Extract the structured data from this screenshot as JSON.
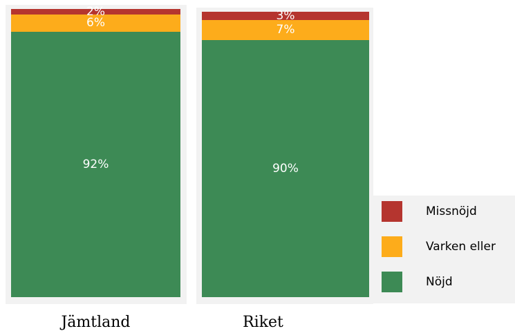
{
  "colors": {
    "missnojd": "#b5352f",
    "varken": "#fdac1b",
    "nojd": "#3d8a55"
  },
  "chart_data": {
    "type": "bar",
    "stacked": true,
    "categories": [
      "Jämtland",
      "Riket"
    ],
    "series": [
      {
        "name": "Nöjd",
        "values": [
          92,
          90
        ],
        "labels": [
          "92%",
          "90%"
        ],
        "color": "#3d8a55"
      },
      {
        "name": "Varken eller",
        "values": [
          6,
          7
        ],
        "labels": [
          "6%",
          "7%"
        ],
        "color": "#fdac1b"
      },
      {
        "name": "Missnöjd",
        "values": [
          2,
          3
        ],
        "labels": [
          "2%",
          "3%"
        ],
        "color": "#b5352f"
      }
    ],
    "ylim": [
      0,
      100
    ],
    "grid": false,
    "legend_position": "bottom-right"
  },
  "legend": {
    "items": [
      {
        "label": "Missnöjd",
        "color": "#b5352f"
      },
      {
        "label": "Varken eller",
        "color": "#fdac1b"
      },
      {
        "label": "Nöjd",
        "color": "#3d8a55"
      }
    ]
  }
}
